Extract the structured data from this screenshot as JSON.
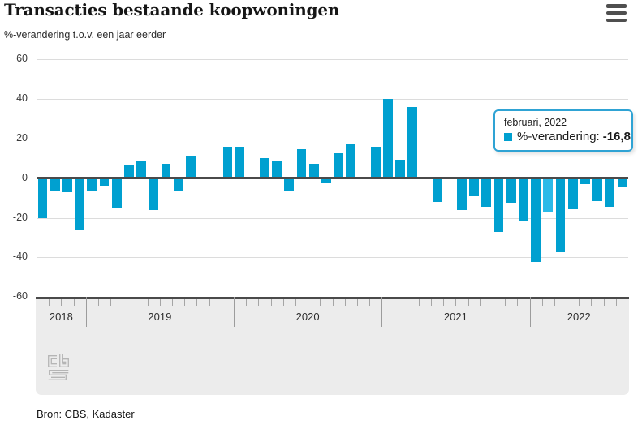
{
  "header": {
    "title": "Transacties bestaande koopwoningen",
    "subtitle": "%-verandering t.o.v. een jaar eerder",
    "menu_icon": "hamburger-menu-icon"
  },
  "chart_data": {
    "type": "bar",
    "title": "Transacties bestaande koopwoningen",
    "ylabel": "%-verandering t.o.v. een jaar eerder",
    "ylim": [
      -60,
      60
    ],
    "y_ticks": [
      60,
      40,
      20,
      0,
      -20,
      -40,
      -60
    ],
    "grid": true,
    "legend_position": "none",
    "series_name": "%-verandering",
    "x": [
      "sep 2018",
      "okt 2018",
      "nov 2018",
      "dec 2018",
      "jan 2019",
      "feb 2019",
      "mrt 2019",
      "apr 2019",
      "mei 2019",
      "jun 2019",
      "jul 2019",
      "aug 2019",
      "sep 2019",
      "okt 2019",
      "nov 2019",
      "dec 2019",
      "jan 2020",
      "feb 2020",
      "mrt 2020",
      "apr 2020",
      "mei 2020",
      "jun 2020",
      "jul 2020",
      "aug 2020",
      "sep 2020",
      "okt 2020",
      "nov 2020",
      "dec 2020",
      "jan 2021",
      "feb 2021",
      "mrt 2021",
      "apr 2021",
      "mei 2021",
      "jun 2021",
      "jul 2021",
      "aug 2021",
      "sep 2021",
      "okt 2021",
      "nov 2021",
      "dec 2021",
      "jan 2022",
      "feb 2022",
      "mrt 2022",
      "apr 2022",
      "mei 2022",
      "jun 2022",
      "jul 2022",
      "aug 2022"
    ],
    "values": [
      -20,
      -6.6,
      -6.9,
      -26.5,
      -6.2,
      -3.8,
      -15.2,
      6.5,
      8.3,
      -16.3,
      7.3,
      -6.6,
      11.4,
      0,
      0,
      15.8,
      15.9,
      0,
      10.3,
      8.7,
      -6.6,
      14.5,
      7.4,
      -2.4,
      12.5,
      17.6,
      0.8,
      15.9,
      40.2,
      9.4,
      35.8,
      0,
      -12,
      0,
      -15.9,
      -9,
      -14.5,
      -27.3,
      -12.4,
      -21.5,
      -42.5,
      -16.8,
      -37.6,
      -15.6,
      -3,
      -11.7,
      -14.5,
      -4.5
    ],
    "highlight": {
      "index": 41,
      "label": "februari, 2022",
      "value": -16.8
    },
    "years": [
      {
        "label": "2018",
        "months": 4
      },
      {
        "label": "2019",
        "months": 12
      },
      {
        "label": "2020",
        "months": 12
      },
      {
        "label": "2021",
        "months": 12
      },
      {
        "label": "2022",
        "months": 8
      }
    ]
  },
  "tooltip": {
    "period": "februari, 2022",
    "series_label": "%-verandering:",
    "value": "-16,8"
  },
  "source": {
    "label": "Bron: CBS, Kadaster"
  },
  "logo": {
    "name": "cbs-logo",
    "top": "cb",
    "bottom": "s"
  },
  "colors": {
    "bar": "#00a0d0",
    "bar_highlight": "#2bbae8",
    "axis": "#4a4a4a",
    "grid": "#dcdcdc",
    "panel": "#ececec",
    "tooltip_border": "#2fa3d4",
    "menu": "#4f4f4f"
  }
}
